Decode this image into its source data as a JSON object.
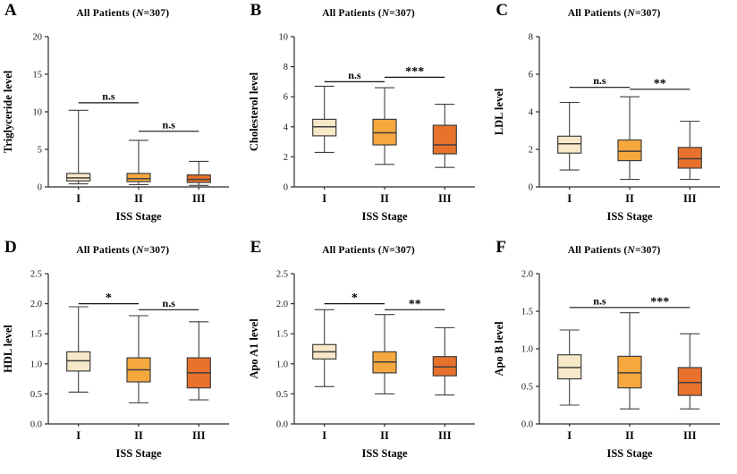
{
  "figure": {
    "background": "#ffffff",
    "panels": [
      "A",
      "B",
      "C",
      "D",
      "E",
      "F"
    ]
  },
  "colors": {
    "stage_I_fill": "#F7E8C8",
    "stage_II_fill": "#F4A83E",
    "stage_III_fill": "#E8722B",
    "box_stroke": "#3f3f3f",
    "axis": "#2b2b2b",
    "text": "#111111"
  },
  "chart_data": [
    {
      "type": "box",
      "panel": "A",
      "title": "All Patients (N=307)",
      "title_pre": "All Patients (",
      "title_italic": "N",
      "title_post": "=307)",
      "ylabel": "Triglyceride level",
      "xlabel": "ISS Stage",
      "categories": [
        "I",
        "II",
        "III"
      ],
      "ylim": [
        0,
        20
      ],
      "yticks": [
        0,
        5,
        10,
        15,
        20
      ],
      "ytick_labels": [
        "0",
        "5",
        "10",
        "15",
        "20"
      ],
      "boxes": [
        {
          "category": "I",
          "whisker_low": 0.4,
          "q1": 0.8,
          "median": 1.2,
          "q3": 1.8,
          "whisker_high": 10.2,
          "fill": "#F7E8C8"
        },
        {
          "category": "II",
          "whisker_low": 0.3,
          "q1": 0.7,
          "median": 1.1,
          "q3": 1.8,
          "whisker_high": 6.2,
          "fill": "#F4A83E"
        },
        {
          "category": "III",
          "whisker_low": 0.2,
          "q1": 0.6,
          "median": 1.0,
          "q3": 1.6,
          "whisker_high": 3.4,
          "fill": "#E8722B"
        }
      ],
      "annotations": [
        {
          "between": [
            0,
            1
          ],
          "label": "n.s",
          "y": 11.2
        },
        {
          "between": [
            1,
            2
          ],
          "label": "n.s",
          "y": 7.4
        }
      ]
    },
    {
      "type": "box",
      "panel": "B",
      "title": "All Patients (N=307)",
      "title_pre": "All Patients (",
      "title_italic": "N",
      "title_post": "=307)",
      "ylabel": "Cholesterol level",
      "xlabel": "ISS Stage",
      "categories": [
        "I",
        "II",
        "III"
      ],
      "ylim": [
        0,
        10
      ],
      "yticks": [
        0,
        2,
        4,
        6,
        8,
        10
      ],
      "ytick_labels": [
        "0",
        "2",
        "4",
        "6",
        "8",
        "10"
      ],
      "boxes": [
        {
          "category": "I",
          "whisker_low": 2.3,
          "q1": 3.4,
          "median": 4.0,
          "q3": 4.5,
          "whisker_high": 6.7,
          "fill": "#F7E8C8"
        },
        {
          "category": "II",
          "whisker_low": 1.5,
          "q1": 2.8,
          "median": 3.6,
          "q3": 4.5,
          "whisker_high": 6.6,
          "fill": "#F4A83E"
        },
        {
          "category": "III",
          "whisker_low": 1.3,
          "q1": 2.2,
          "median": 2.8,
          "q3": 4.1,
          "whisker_high": 5.5,
          "fill": "#E8722B"
        }
      ],
      "annotations": [
        {
          "between": [
            0,
            1
          ],
          "label": "n.s",
          "y": 7.0
        },
        {
          "between": [
            1,
            2
          ],
          "label": "***",
          "y": 7.3
        }
      ]
    },
    {
      "type": "box",
      "panel": "C",
      "title": "All Patients (N=307)",
      "title_pre": "All Patients (",
      "title_italic": "N",
      "title_post": "=307)",
      "ylabel": "LDL level",
      "xlabel": "ISS Stage",
      "categories": [
        "I",
        "II",
        "III"
      ],
      "ylim": [
        0,
        8
      ],
      "yticks": [
        0,
        2,
        4,
        6,
        8
      ],
      "ytick_labels": [
        "0",
        "2",
        "4",
        "6",
        "8"
      ],
      "boxes": [
        {
          "category": "I",
          "whisker_low": 0.9,
          "q1": 1.8,
          "median": 2.3,
          "q3": 2.7,
          "whisker_high": 4.5,
          "fill": "#F7E8C8"
        },
        {
          "category": "II",
          "whisker_low": 0.4,
          "q1": 1.4,
          "median": 1.9,
          "q3": 2.5,
          "whisker_high": 4.8,
          "fill": "#F4A83E"
        },
        {
          "category": "III",
          "whisker_low": 0.4,
          "q1": 1.0,
          "median": 1.5,
          "q3": 2.1,
          "whisker_high": 3.5,
          "fill": "#E8722B"
        }
      ],
      "annotations": [
        {
          "between": [
            0,
            1
          ],
          "label": "n.s",
          "y": 5.3
        },
        {
          "between": [
            1,
            2
          ],
          "label": "**",
          "y": 5.2
        }
      ]
    },
    {
      "type": "box",
      "panel": "D",
      "title": "All Patients (N=307)",
      "title_pre": "All Patients (",
      "title_italic": "N",
      "title_post": "=307)",
      "ylabel": "HDL level",
      "xlabel": "ISS Stage",
      "categories": [
        "I",
        "II",
        "III"
      ],
      "ylim": [
        0,
        2.5
      ],
      "yticks": [
        0,
        0.5,
        1.0,
        1.5,
        2.0,
        2.5
      ],
      "ytick_labels": [
        "0.0",
        "0.5",
        "1.0",
        "1.5",
        "2.0",
        "2.5"
      ],
      "boxes": [
        {
          "category": "I",
          "whisker_low": 0.53,
          "q1": 0.88,
          "median": 1.05,
          "q3": 1.2,
          "whisker_high": 1.95,
          "fill": "#F7E8C8"
        },
        {
          "category": "II",
          "whisker_low": 0.35,
          "q1": 0.7,
          "median": 0.9,
          "q3": 1.1,
          "whisker_high": 1.8,
          "fill": "#F4A83E"
        },
        {
          "category": "III",
          "whisker_low": 0.4,
          "q1": 0.6,
          "median": 0.85,
          "q3": 1.1,
          "whisker_high": 1.7,
          "fill": "#E8722B"
        }
      ],
      "annotations": [
        {
          "between": [
            0,
            1
          ],
          "label": "*",
          "y": 2.0
        },
        {
          "between": [
            1,
            2
          ],
          "label": "n.s",
          "y": 1.9
        }
      ]
    },
    {
      "type": "box",
      "panel": "E",
      "title": "All Patients (N=307)",
      "title_pre": "All Patients (",
      "title_italic": "N",
      "title_post": "=307)",
      "ylabel": "Apo A1 level",
      "xlabel": "ISS Stage",
      "categories": [
        "I",
        "II",
        "III"
      ],
      "ylim": [
        0,
        2.5
      ],
      "yticks": [
        0,
        0.5,
        1.0,
        1.5,
        2.0,
        2.5
      ],
      "ytick_labels": [
        "0.0",
        "0.5",
        "1.0",
        "1.5",
        "2.0",
        "2.5"
      ],
      "boxes": [
        {
          "category": "I",
          "whisker_low": 0.62,
          "q1": 1.08,
          "median": 1.2,
          "q3": 1.32,
          "whisker_high": 1.9,
          "fill": "#F7E8C8"
        },
        {
          "category": "II",
          "whisker_low": 0.5,
          "q1": 0.85,
          "median": 1.03,
          "q3": 1.2,
          "whisker_high": 1.82,
          "fill": "#F4A83E"
        },
        {
          "category": "III",
          "whisker_low": 0.48,
          "q1": 0.8,
          "median": 0.95,
          "q3": 1.12,
          "whisker_high": 1.6,
          "fill": "#E8722B"
        }
      ],
      "annotations": [
        {
          "between": [
            0,
            1
          ],
          "label": "*",
          "y": 2.0
        },
        {
          "between": [
            1,
            2
          ],
          "label": "**",
          "y": 1.9
        }
      ]
    },
    {
      "type": "box",
      "panel": "F",
      "title": "All Patients (N=307)",
      "title_pre": "All Patients (",
      "title_italic": "N",
      "title_post": "=307)",
      "ylabel": "Apo B level",
      "xlabel": "ISS Stage",
      "categories": [
        "I",
        "II",
        "III"
      ],
      "ylim": [
        0,
        2.0
      ],
      "yticks": [
        0,
        0.5,
        1.0,
        1.5,
        2.0
      ],
      "ytick_labels": [
        "0.0",
        "0.5",
        "1.0",
        "1.5",
        "2.0"
      ],
      "boxes": [
        {
          "category": "I",
          "whisker_low": 0.25,
          "q1": 0.6,
          "median": 0.75,
          "q3": 0.92,
          "whisker_high": 1.25,
          "fill": "#F7E8C8"
        },
        {
          "category": "II",
          "whisker_low": 0.2,
          "q1": 0.48,
          "median": 0.68,
          "q3": 0.9,
          "whisker_high": 1.48,
          "fill": "#F4A83E"
        },
        {
          "category": "III",
          "whisker_low": 0.2,
          "q1": 0.38,
          "median": 0.55,
          "q3": 0.75,
          "whisker_high": 1.2,
          "fill": "#E8722B"
        }
      ],
      "annotations": [
        {
          "between": [
            0,
            1
          ],
          "label": "n.s",
          "y": 1.55
        },
        {
          "between": [
            1,
            2
          ],
          "label": "***",
          "y": 1.55
        }
      ]
    }
  ]
}
